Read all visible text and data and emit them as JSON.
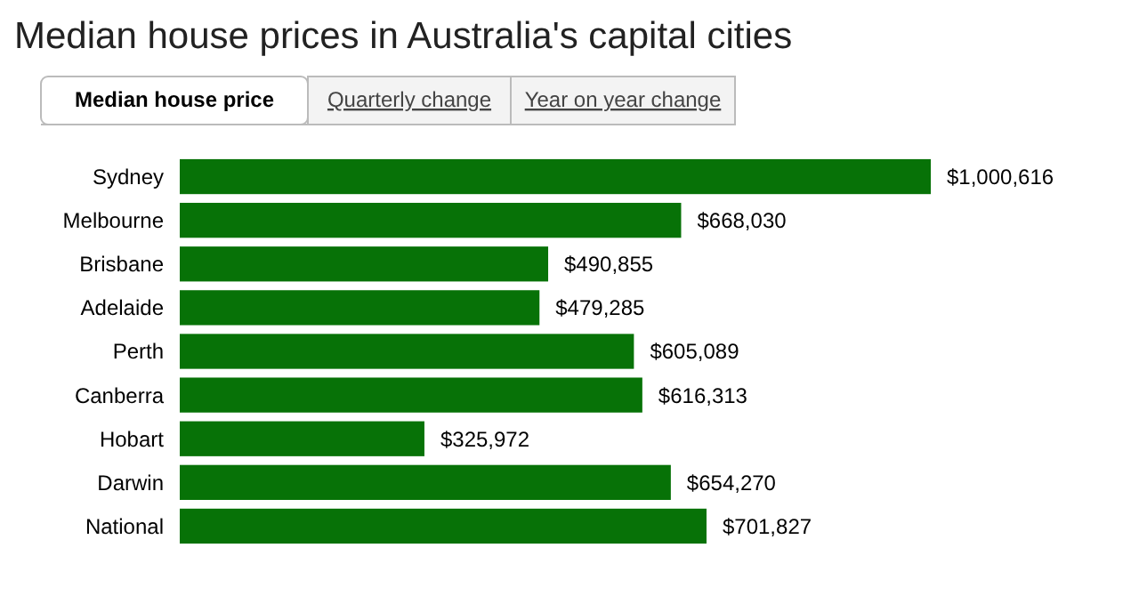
{
  "chart_data": {
    "type": "bar",
    "orientation": "horizontal",
    "title": "Median house prices in Australia's capital cities",
    "annotations": [
      "Median house price",
      "Quarterly change",
      "Year on year change"
    ],
    "categories": [
      "Sydney",
      "Melbourne",
      "Brisbane",
      "Adelaide",
      "Perth",
      "Canberra",
      "Hobart",
      "Darwin",
      "National"
    ],
    "values": [
      1000616,
      668030,
      490855,
      479285,
      605089,
      616313,
      325972,
      654270,
      701827
    ],
    "value_labels": [
      "$1,000,616",
      "$668,030",
      "$490,855",
      "$479,285",
      "$605,089",
      "$616,313",
      "$325,972",
      "$654,270",
      "$701,827"
    ],
    "color": "#077207"
  }
}
